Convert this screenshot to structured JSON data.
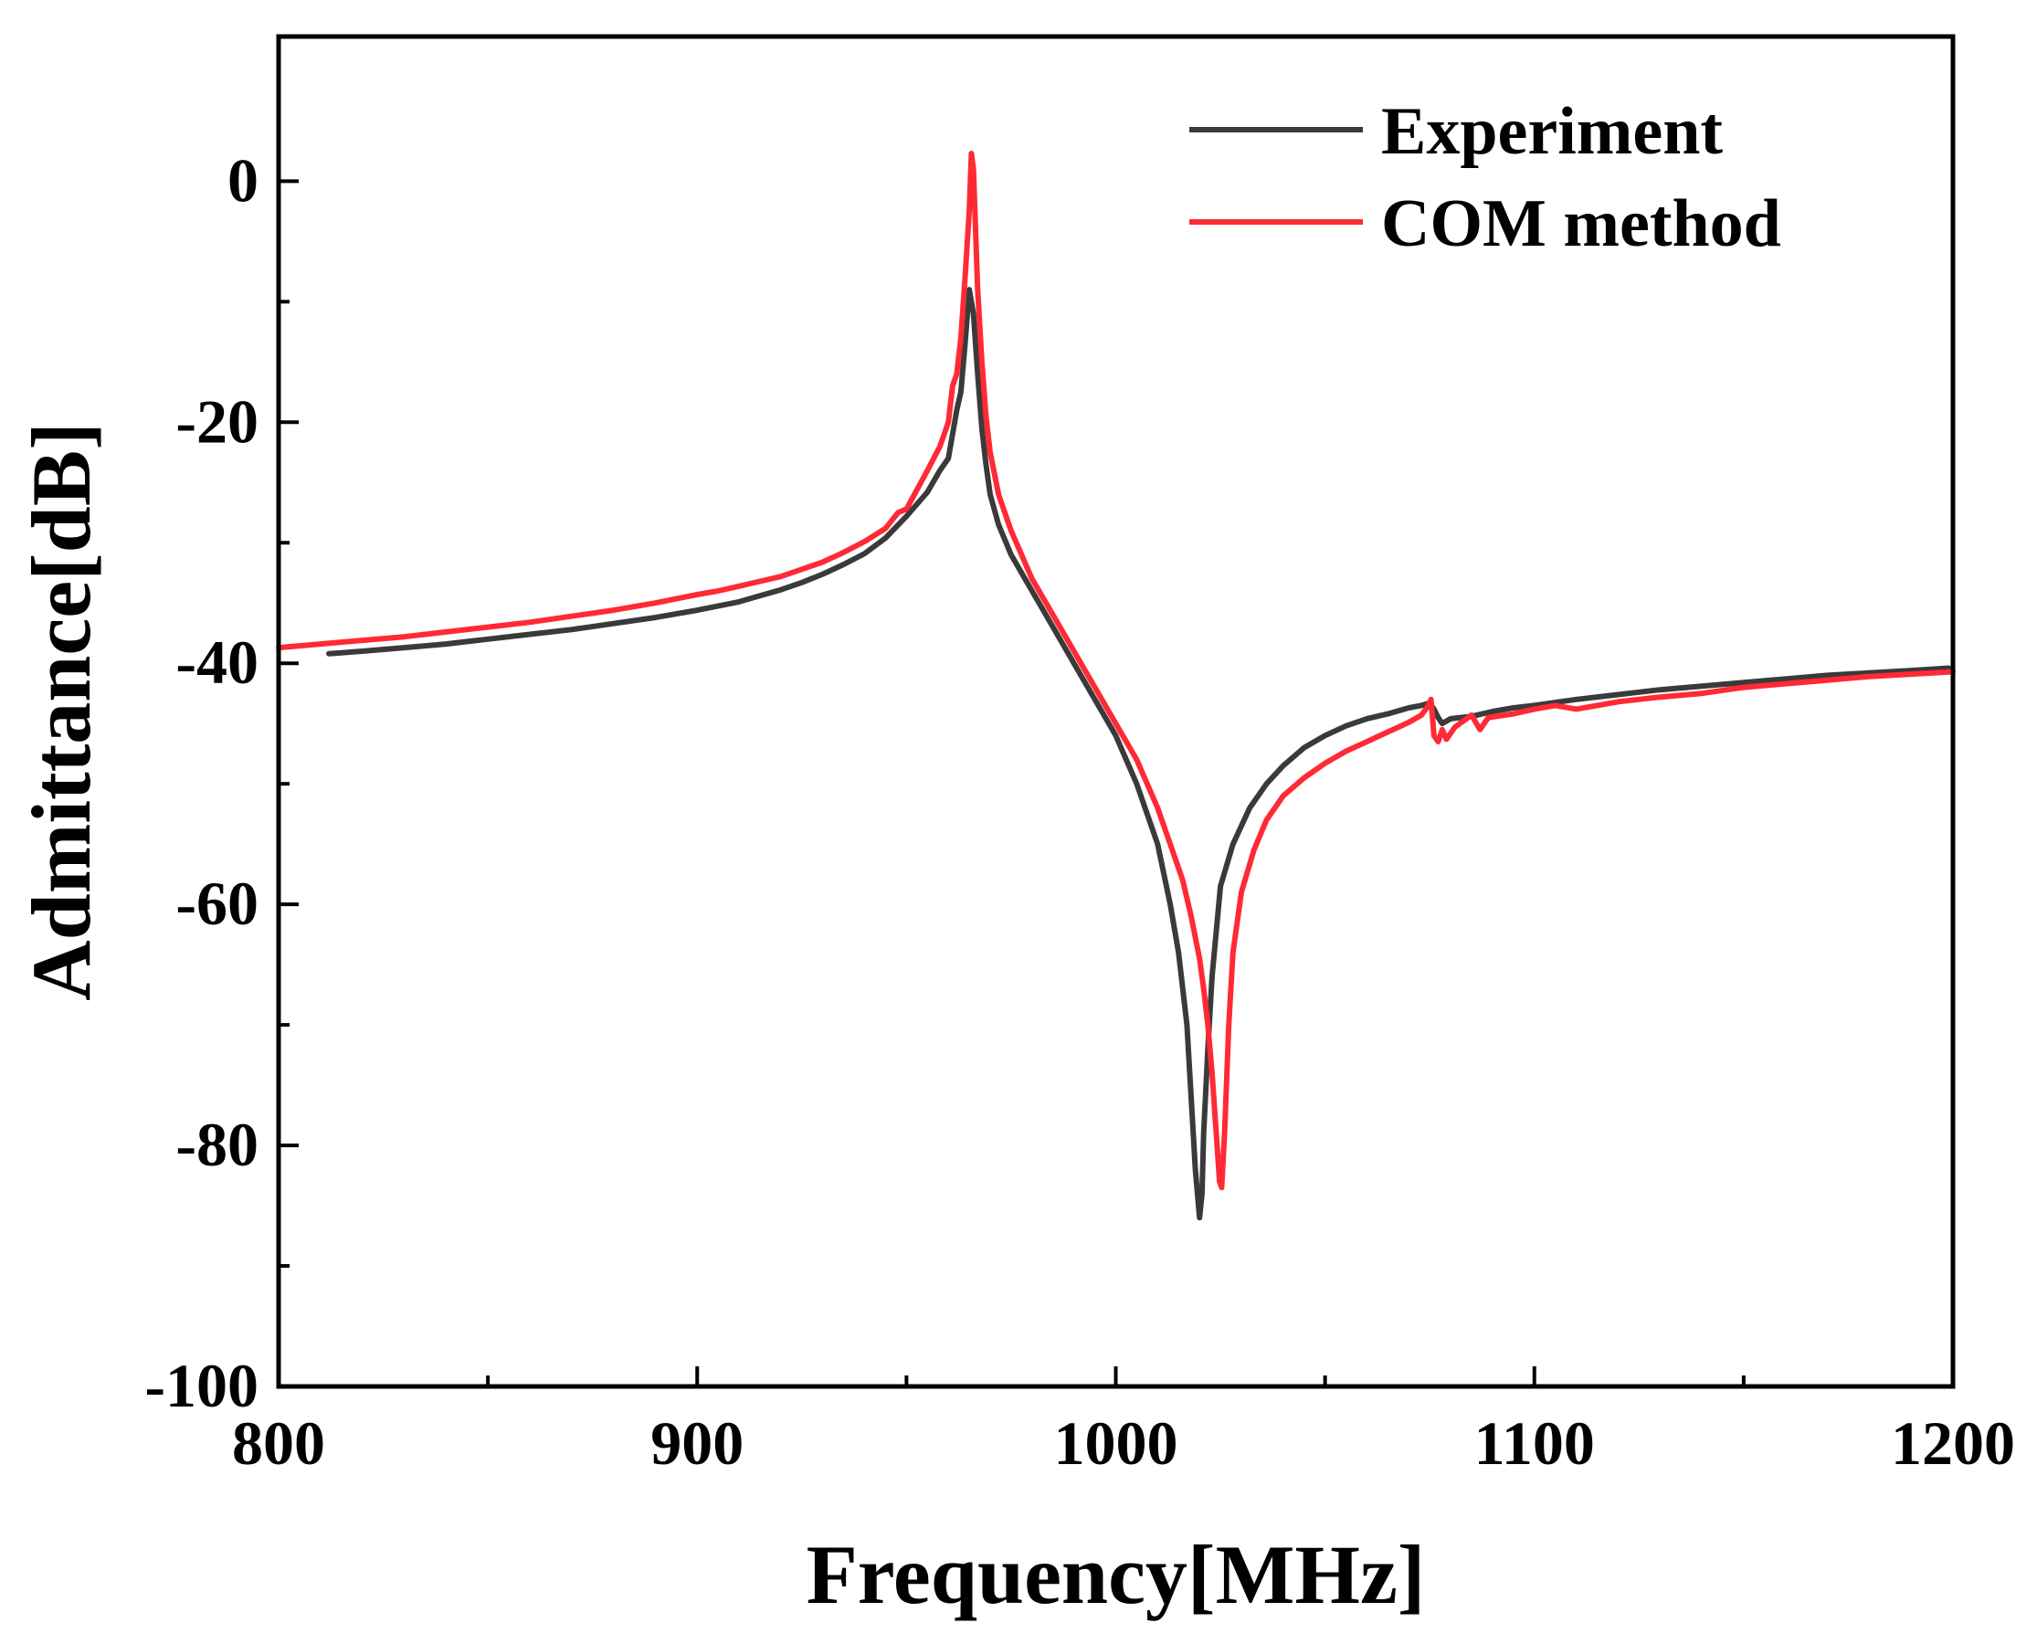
{
  "chart_data": {
    "type": "line",
    "title": "",
    "xlabel": "Frequency[MHz]",
    "ylabel": "Admittance[dB]",
    "xlim": [
      800,
      1200
    ],
    "ylim": [
      -100,
      12
    ],
    "xticks": [
      800,
      900,
      1000,
      1100,
      1200
    ],
    "xtick_labels": [
      "800",
      "900",
      "1000",
      "1100",
      "1200"
    ],
    "yticks": [
      0,
      -20,
      -40,
      -60,
      -80,
      -100
    ],
    "ytick_labels": [
      "0",
      "-20",
      "-40",
      "-60",
      "-80",
      "-100"
    ],
    "legend_position": "top-right",
    "grid": false,
    "series": [
      {
        "name": "Experiment",
        "color": "#3a3a3a",
        "x": [
          812,
          820,
          830,
          840,
          850,
          860,
          870,
          880,
          890,
          900,
          910,
          915,
          920,
          925,
          930,
          935,
          940,
          945,
          950,
          955,
          958,
          960,
          962,
          963,
          964,
          965,
          966,
          967,
          968,
          969,
          970,
          972,
          975,
          980,
          985,
          990,
          995,
          1000,
          1005,
          1010,
          1013,
          1015,
          1017,
          1018,
          1019,
          1020,
          1020.6,
          1021,
          1022,
          1023,
          1025,
          1028,
          1032,
          1036,
          1040,
          1045,
          1050,
          1055,
          1060,
          1065,
          1070,
          1073,
          1075,
          1076,
          1077,
          1078,
          1080,
          1085,
          1090,
          1095,
          1100,
          1110,
          1120,
          1130,
          1140,
          1150,
          1160,
          1170,
          1180,
          1190,
          1199
        ],
        "y": [
          -39.2,
          -39.0,
          -38.7,
          -38.4,
          -38.0,
          -37.6,
          -37.2,
          -36.7,
          -36.2,
          -35.6,
          -34.9,
          -34.4,
          -33.9,
          -33.3,
          -32.6,
          -31.8,
          -30.9,
          -29.6,
          -27.8,
          -25.8,
          -24.0,
          -23.0,
          -19.0,
          -17.5,
          -13.5,
          -9.0,
          -11.0,
          -16.0,
          -20.5,
          -23.5,
          -26.0,
          -28.5,
          -31.0,
          -34.0,
          -37.0,
          -40.0,
          -43.0,
          -46.0,
          -50.0,
          -55.0,
          -60.0,
          -64.0,
          -70.0,
          -76.0,
          -82.0,
          -86.0,
          -84.0,
          -79.0,
          -72.0,
          -66.0,
          -58.5,
          -55.0,
          -52.0,
          -50.0,
          -48.5,
          -47.0,
          -46.0,
          -45.2,
          -44.6,
          -44.2,
          -43.7,
          -43.5,
          -43.3,
          -43.8,
          -44.5,
          -45.0,
          -44.6,
          -44.4,
          -44.0,
          -43.7,
          -43.5,
          -43.0,
          -42.6,
          -42.2,
          -41.9,
          -41.6,
          -41.3,
          -41.0,
          -40.8,
          -40.6,
          -40.4
        ]
      },
      {
        "name": "COM method",
        "color": "#ff2a35",
        "x": [
          800,
          810,
          820,
          830,
          840,
          850,
          860,
          870,
          880,
          890,
          900,
          905,
          910,
          915,
          920,
          925,
          930,
          935,
          940,
          945,
          948,
          950,
          955,
          958,
          960,
          961,
          962,
          963,
          964,
          965,
          965.5,
          966,
          966.5,
          967,
          968,
          969,
          970,
          972,
          975,
          980,
          985,
          990,
          995,
          1000,
          1005,
          1010,
          1013,
          1016,
          1018,
          1020,
          1021,
          1022,
          1023,
          1024,
          1024.8,
          1025.3,
          1026,
          1027,
          1028,
          1030,
          1033,
          1036,
          1040,
          1045,
          1050,
          1055,
          1060,
          1065,
          1070,
          1073,
          1074.5,
          1075.3,
          1076,
          1077,
          1078,
          1079,
          1081,
          1083,
          1085,
          1087,
          1089,
          1095,
          1100,
          1105,
          1110,
          1120,
          1130,
          1140,
          1150,
          1160,
          1170,
          1180,
          1190,
          1200
        ],
        "y": [
          -38.7,
          -38.4,
          -38.1,
          -37.8,
          -37.4,
          -37.0,
          -36.6,
          -36.1,
          -35.6,
          -35.0,
          -34.3,
          -34.0,
          -33.6,
          -33.2,
          -32.8,
          -32.2,
          -31.6,
          -30.8,
          -29.9,
          -28.8,
          -27.5,
          -27.2,
          -24.0,
          -22.0,
          -20.0,
          -17.0,
          -16.0,
          -13.0,
          -8.0,
          -2.5,
          2.3,
          1.0,
          -4.0,
          -9.0,
          -15.0,
          -19.5,
          -22.5,
          -26.0,
          -29.0,
          -33.0,
          -36.0,
          -39.0,
          -42.0,
          -45.0,
          -48.0,
          -52.0,
          -55.0,
          -58.0,
          -61.0,
          -64.5,
          -67.0,
          -70.0,
          -74.0,
          -79.0,
          -83.0,
          -83.5,
          -79.0,
          -70.0,
          -64.0,
          -59.0,
          -55.5,
          -53.0,
          -51.0,
          -49.5,
          -48.3,
          -47.3,
          -46.5,
          -45.7,
          -44.9,
          -44.3,
          -43.6,
          -43.0,
          -46.0,
          -46.5,
          -45.5,
          -46.3,
          -45.3,
          -44.8,
          -44.3,
          -45.5,
          -44.5,
          -44.2,
          -43.8,
          -43.5,
          -43.8,
          -43.2,
          -42.8,
          -42.5,
          -42.0,
          -41.7,
          -41.4,
          -41.1,
          -40.9,
          -40.7
        ]
      }
    ]
  }
}
